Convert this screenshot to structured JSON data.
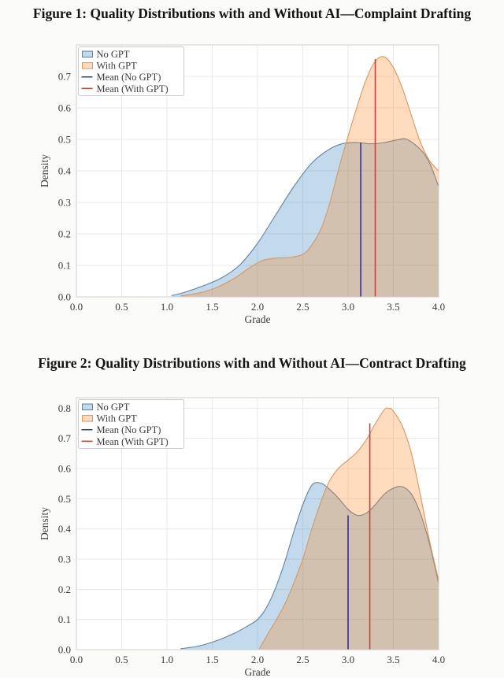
{
  "figures": [
    {
      "title": "Figure 1: Quality Distributions with and Without AI—Complaint Drafting"
    },
    {
      "title": "Figure 2: Quality Distributions with and Without AI—Contract Drafting"
    }
  ],
  "colors": {
    "no_gpt_fill": "#1f77b4",
    "with_gpt_fill": "#ff7f0e",
    "no_gpt_edge": "#5f84a2",
    "with_gpt_edge": "#d8985f",
    "mean_no_gpt": "#322f93",
    "mean_with_gpt": "#c8423b",
    "grid": "#e9e9e9",
    "spine": "#cfcfcf",
    "text": "#3a3a3a"
  },
  "chart_data": [
    {
      "type": "area",
      "title": "Figure 1: Quality Distributions with and Without AI—Complaint Drafting",
      "xlabel": "Grade",
      "ylabel": "Density",
      "xlim": [
        0.0,
        4.0
      ],
      "ylim": [
        0.0,
        0.8
      ],
      "xticks": [
        0.0,
        0.5,
        1.0,
        1.5,
        2.0,
        2.5,
        3.0,
        3.5,
        4.0
      ],
      "yticks": [
        0.0,
        0.1,
        0.2,
        0.3,
        0.4,
        0.5,
        0.6,
        0.7
      ],
      "grid": true,
      "legend_position": "upper left",
      "legend": [
        "No GPT",
        "With GPT",
        "Mean (No GPT)",
        "Mean (With GPT)"
      ],
      "series": [
        {
          "name": "No GPT",
          "fill": "#1f77b4",
          "fill_opacity": 0.27,
          "edge": "#5f84a2",
          "x": [
            1.05,
            1.2,
            1.4,
            1.6,
            1.8,
            2.0,
            2.2,
            2.4,
            2.6,
            2.8,
            2.95,
            3.1,
            3.25,
            3.4,
            3.55,
            3.65,
            3.8,
            3.9,
            4.0
          ],
          "y": [
            0.004,
            0.015,
            0.035,
            0.06,
            0.1,
            0.17,
            0.26,
            0.35,
            0.425,
            0.47,
            0.487,
            0.49,
            0.486,
            0.49,
            0.499,
            0.5,
            0.468,
            0.425,
            0.35
          ]
        },
        {
          "name": "With GPT",
          "fill": "#ff7f0e",
          "fill_opacity": 0.27,
          "edge": "#d8985f",
          "x": [
            1.15,
            1.35,
            1.55,
            1.75,
            1.9,
            2.05,
            2.2,
            2.35,
            2.5,
            2.6,
            2.7,
            2.8,
            2.9,
            3.0,
            3.1,
            3.2,
            3.3,
            3.4,
            3.5,
            3.6,
            3.7,
            3.8,
            3.9,
            4.0
          ],
          "y": [
            0.003,
            0.012,
            0.03,
            0.06,
            0.09,
            0.115,
            0.123,
            0.125,
            0.135,
            0.165,
            0.215,
            0.3,
            0.41,
            0.51,
            0.605,
            0.69,
            0.748,
            0.762,
            0.728,
            0.662,
            0.575,
            0.49,
            0.432,
            0.4
          ]
        }
      ],
      "mean_lines": [
        {
          "name": "Mean (No GPT)",
          "x": 3.14,
          "ymax": 0.49,
          "color": "#322f93"
        },
        {
          "name": "Mean (With GPT)",
          "x": 3.3,
          "ymax": 0.755,
          "color": "#c8423b"
        }
      ]
    },
    {
      "type": "area",
      "title": "Figure 2: Quality Distributions with and Without AI—Contract Drafting",
      "xlabel": "Grade",
      "ylabel": "Density",
      "xlim": [
        0.0,
        4.0
      ],
      "ylim": [
        0.0,
        0.835
      ],
      "xticks": [
        0.0,
        0.5,
        1.0,
        1.5,
        2.0,
        2.5,
        3.0,
        3.5,
        4.0
      ],
      "yticks": [
        0.0,
        0.1,
        0.2,
        0.3,
        0.4,
        0.5,
        0.6,
        0.7,
        0.8
      ],
      "grid": true,
      "legend_position": "upper left",
      "legend": [
        "No GPT",
        "With GPT",
        "Mean (No GPT)",
        "Mean (With GPT)"
      ],
      "series": [
        {
          "name": "No GPT",
          "fill": "#1f77b4",
          "fill_opacity": 0.27,
          "edge": "#5f84a2",
          "x": [
            1.15,
            1.35,
            1.55,
            1.75,
            1.9,
            2.0,
            2.1,
            2.2,
            2.3,
            2.4,
            2.5,
            2.6,
            2.7,
            2.8,
            2.9,
            3.0,
            3.1,
            3.2,
            3.3,
            3.4,
            3.5,
            3.6,
            3.7,
            3.8,
            3.9,
            4.0
          ],
          "y": [
            0.003,
            0.012,
            0.03,
            0.055,
            0.08,
            0.1,
            0.14,
            0.205,
            0.29,
            0.39,
            0.48,
            0.545,
            0.552,
            0.53,
            0.5,
            0.465,
            0.445,
            0.452,
            0.48,
            0.515,
            0.535,
            0.54,
            0.515,
            0.45,
            0.35,
            0.22
          ]
        },
        {
          "name": "With GPT",
          "fill": "#ff7f0e",
          "fill_opacity": 0.27,
          "edge": "#d8985f",
          "x": [
            2.02,
            2.1,
            2.2,
            2.3,
            2.4,
            2.5,
            2.6,
            2.7,
            2.8,
            2.9,
            3.0,
            3.1,
            3.2,
            3.3,
            3.4,
            3.45,
            3.5,
            3.6,
            3.7,
            3.8,
            3.9,
            4.0
          ],
          "y": [
            0.003,
            0.045,
            0.095,
            0.15,
            0.22,
            0.3,
            0.4,
            0.49,
            0.562,
            0.603,
            0.628,
            0.655,
            0.695,
            0.748,
            0.795,
            0.8,
            0.79,
            0.74,
            0.65,
            0.51,
            0.36,
            0.23
          ]
        }
      ],
      "mean_lines": [
        {
          "name": "Mean (No GPT)",
          "x": 3.0,
          "ymax": 0.445,
          "color": "#322f93"
        },
        {
          "name": "Mean (With GPT)",
          "x": 3.24,
          "ymax": 0.75,
          "color": "#c8423b"
        }
      ]
    }
  ]
}
